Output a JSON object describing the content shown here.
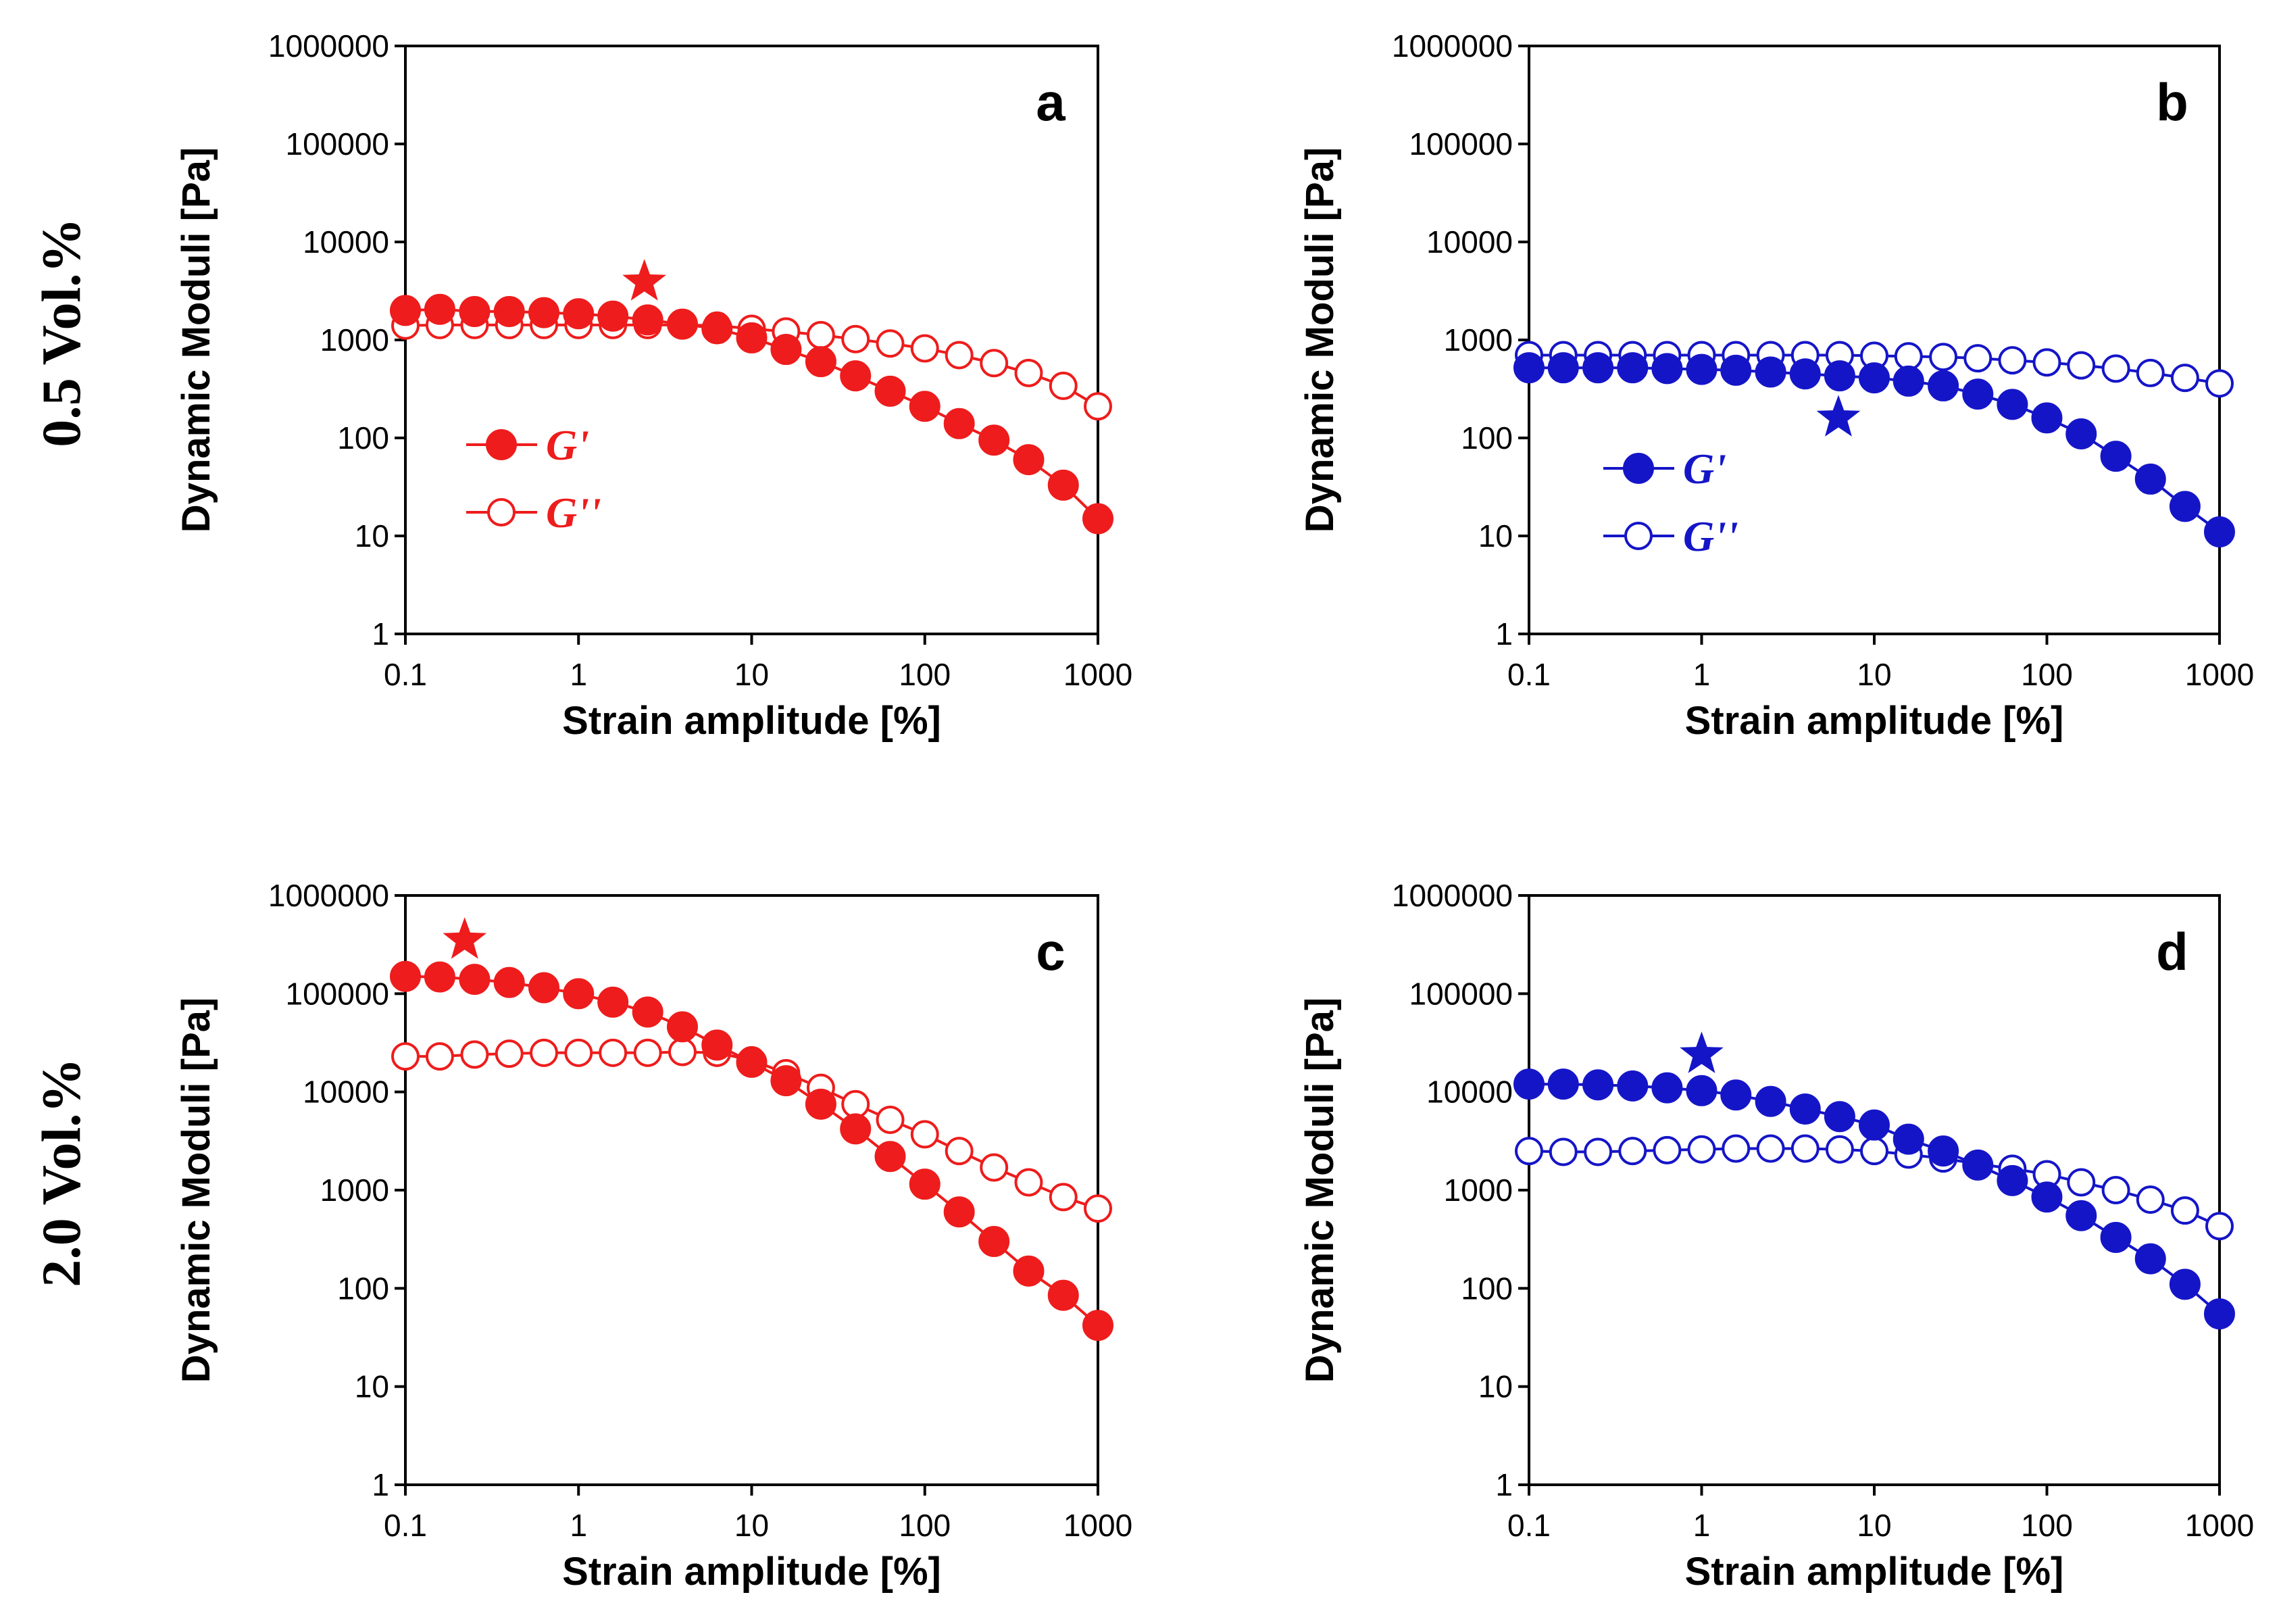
{
  "row_labels": [
    "0.5 Vol.%",
    "2.0 Vol.%"
  ],
  "colors": {
    "red": "#ee1c1c",
    "blue": "#1515c8"
  },
  "chart_data": [
    {
      "panel": "a",
      "type": "scatter-line",
      "color": "red",
      "row_label": "0.5 Vol.%",
      "xlabel": "Strain amplitude [%]",
      "ylabel": "Dynamic Moduli [Pa]",
      "xscale": "log",
      "yscale": "log",
      "xlim": [
        0.1,
        1000
      ],
      "ylim": [
        1,
        1000000
      ],
      "xticks": [
        "0.1",
        "1",
        "10",
        "100",
        "1000"
      ],
      "yticks": [
        "1",
        "10",
        "100",
        "1000",
        "10000",
        "100000",
        "1000000"
      ],
      "legend": {
        "position": "center-left",
        "entries": [
          "G'",
          "G''"
        ]
      },
      "x": [
        0.1,
        0.158,
        0.251,
        0.398,
        0.631,
        1,
        1.58,
        2.51,
        3.98,
        6.31,
        10,
        15.8,
        25.1,
        39.8,
        63.1,
        100,
        158,
        251,
        398,
        631,
        1000
      ],
      "series": [
        {
          "name": "G'",
          "marker": "filled-circle",
          "values": [
            2000,
            2050,
            1950,
            1950,
            1900,
            1850,
            1750,
            1600,
            1450,
            1300,
            1050,
            800,
            600,
            430,
            300,
            210,
            140,
            95,
            60,
            33,
            15
          ]
        },
        {
          "name": "G''",
          "marker": "open-circle",
          "values": [
            1400,
            1420,
            1420,
            1420,
            1420,
            1420,
            1420,
            1420,
            1420,
            1400,
            1300,
            1220,
            1120,
            1020,
            920,
            820,
            700,
            580,
            460,
            340,
            210
          ]
        }
      ],
      "star": {
        "x": 2.4,
        "y": 3900
      }
    },
    {
      "panel": "b",
      "type": "scatter-line",
      "color": "blue",
      "row_label": "0.5 Vol.%",
      "xlabel": "Strain amplitude [%]",
      "ylabel": "Dynamic Moduli [Pa]",
      "xscale": "log",
      "yscale": "log",
      "xlim": [
        0.1,
        1000
      ],
      "ylim": [
        1,
        1000000
      ],
      "xticks": [
        "0.1",
        "1",
        "10",
        "100",
        "1000"
      ],
      "yticks": [
        "1",
        "10",
        "100",
        "1000",
        "10000",
        "100000",
        "1000000"
      ],
      "legend": {
        "position": "lower-left",
        "entries": [
          "G'",
          "G''"
        ]
      },
      "x": [
        0.1,
        0.158,
        0.251,
        0.398,
        0.631,
        1,
        1.58,
        2.51,
        3.98,
        6.31,
        10,
        15.8,
        25.1,
        39.8,
        63.1,
        100,
        158,
        251,
        398,
        631,
        1000
      ],
      "series": [
        {
          "name": "G'",
          "marker": "filled-circle",
          "values": [
            520,
            520,
            520,
            520,
            510,
            500,
            490,
            470,
            450,
            430,
            410,
            380,
            340,
            280,
            220,
            160,
            110,
            65,
            38,
            20,
            11
          ]
        },
        {
          "name": "G''",
          "marker": "open-circle",
          "values": [
            700,
            700,
            700,
            700,
            700,
            700,
            700,
            700,
            700,
            700,
            690,
            680,
            670,
            650,
            620,
            590,
            550,
            510,
            460,
            410,
            360
          ]
        }
      ],
      "star": {
        "x": 6.2,
        "y": 160
      }
    },
    {
      "panel": "c",
      "type": "scatter-line",
      "color": "red",
      "row_label": "2.0 Vol.%",
      "xlabel": "Strain amplitude [%]",
      "ylabel": "Dynamic Moduli [Pa]",
      "xscale": "log",
      "yscale": "log",
      "xlim": [
        0.1,
        1000
      ],
      "ylim": [
        1,
        1000000
      ],
      "xticks": [
        "0.1",
        "1",
        "10",
        "100",
        "1000"
      ],
      "yticks": [
        "1",
        "10",
        "100",
        "1000",
        "10000",
        "100000",
        "1000000"
      ],
      "legend": null,
      "x": [
        0.1,
        0.158,
        0.251,
        0.398,
        0.631,
        1,
        1.58,
        2.51,
        3.98,
        6.31,
        10,
        15.8,
        25.1,
        39.8,
        63.1,
        100,
        158,
        251,
        398,
        631,
        1000
      ],
      "series": [
        {
          "name": "G'",
          "marker": "filled-circle",
          "values": [
            150000,
            148000,
            140000,
            130000,
            115000,
            100000,
            82000,
            65000,
            46000,
            30000,
            20000,
            13000,
            7500,
            4200,
            2200,
            1150,
            600,
            300,
            150,
            85,
            42
          ]
        },
        {
          "name": "G''",
          "marker": "open-circle",
          "values": [
            23000,
            23000,
            24000,
            24500,
            25000,
            25000,
            25000,
            25000,
            25500,
            25000,
            21000,
            15500,
            11000,
            7500,
            5200,
            3700,
            2500,
            1700,
            1200,
            850,
            650
          ]
        }
      ],
      "star": {
        "x": 0.22,
        "y": 350000
      }
    },
    {
      "panel": "d",
      "type": "scatter-line",
      "color": "blue",
      "row_label": "2.0 Vol.%",
      "xlabel": "Strain amplitude [%]",
      "ylabel": "Dynamic Moduli [Pa]",
      "xscale": "log",
      "yscale": "log",
      "xlim": [
        0.1,
        1000
      ],
      "ylim": [
        1,
        1000000
      ],
      "xticks": [
        "0.1",
        "1",
        "10",
        "100",
        "1000"
      ],
      "yticks": [
        "1",
        "10",
        "100",
        "1000",
        "10000",
        "100000",
        "1000000"
      ],
      "legend": null,
      "x": [
        0.1,
        0.158,
        0.251,
        0.398,
        0.631,
        1,
        1.58,
        2.51,
        3.98,
        6.31,
        10,
        15.8,
        25.1,
        39.8,
        63.1,
        100,
        158,
        251,
        398,
        631,
        1000
      ],
      "series": [
        {
          "name": "G'",
          "marker": "filled-circle",
          "values": [
            12000,
            12000,
            11800,
            11500,
            11000,
            10300,
            9300,
            8000,
            6700,
            5600,
            4600,
            3300,
            2500,
            1800,
            1250,
            850,
            550,
            330,
            200,
            110,
            55
          ]
        },
        {
          "name": "G''",
          "marker": "open-circle",
          "values": [
            2500,
            2450,
            2450,
            2500,
            2550,
            2600,
            2650,
            2650,
            2650,
            2600,
            2500,
            2300,
            2100,
            1850,
            1650,
            1450,
            1200,
            1000,
            800,
            620,
            430
          ]
        }
      ],
      "star": {
        "x": 1.0,
        "y": 24000
      }
    }
  ]
}
